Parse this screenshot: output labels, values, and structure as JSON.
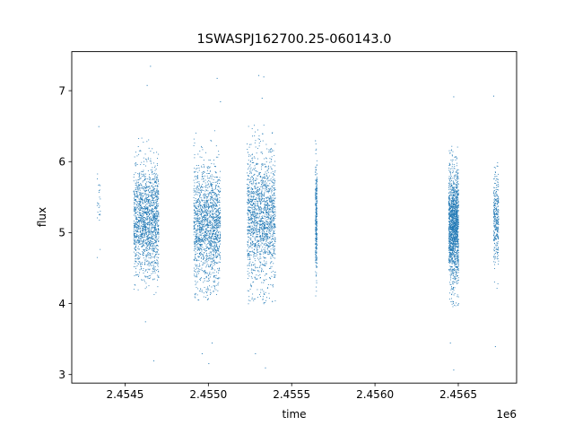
{
  "chart_data": {
    "type": "scatter",
    "title": "1SWASPJ162700.25-060143.0",
    "xlabel": "time",
    "ylabel": "flux",
    "x_offset_label": "1e6",
    "xlim": [
      2.45418,
      2.45685
    ],
    "ylim": [
      2.88,
      7.55
    ],
    "x_ticks": [
      {
        "value": 2.4545,
        "label": "2.4545"
      },
      {
        "value": 2.455,
        "label": "2.4550"
      },
      {
        "value": 2.4555,
        "label": "2.4555"
      },
      {
        "value": 2.456,
        "label": "2.4560"
      },
      {
        "value": 2.4565,
        "label": "2.4565"
      }
    ],
    "y_ticks": [
      {
        "value": 3,
        "label": "3"
      },
      {
        "value": 4,
        "label": "4"
      },
      {
        "value": 5,
        "label": "5"
      },
      {
        "value": 6,
        "label": "6"
      },
      {
        "value": 7,
        "label": "7"
      }
    ],
    "grid": false,
    "point_color": "#1f77b4",
    "clusters": [
      {
        "x_start": 2.45433,
        "x_end": 2.45435,
        "y_mean": 5.5,
        "y_min": 4.75,
        "y_max": 6.5,
        "density": "sparse"
      },
      {
        "x_start": 2.45455,
        "x_end": 2.4547,
        "y_mean": 5.2,
        "y_min": 4.25,
        "y_max": 6.2,
        "density": "dense"
      },
      {
        "x_start": 2.45491,
        "x_end": 2.45507,
        "y_mean": 5.1,
        "y_min": 4.2,
        "y_max": 6.3,
        "density": "dense"
      },
      {
        "x_start": 2.45523,
        "x_end": 2.4554,
        "y_mean": 5.2,
        "y_min": 4.1,
        "y_max": 6.4,
        "density": "dense"
      },
      {
        "x_start": 2.45564,
        "x_end": 2.45565,
        "y_mean": 5.2,
        "y_min": 4.25,
        "y_max": 6.2,
        "density": "medium"
      },
      {
        "x_start": 2.45644,
        "x_end": 2.4565,
        "y_mean": 5.1,
        "y_min": 4.1,
        "y_max": 6.1,
        "density": "dense"
      },
      {
        "x_start": 2.45671,
        "x_end": 2.45674,
        "y_mean": 5.2,
        "y_min": 4.3,
        "y_max": 5.9,
        "density": "medium"
      }
    ],
    "outliers": [
      {
        "x": 2.45465,
        "y": 7.35
      },
      {
        "x": 2.45463,
        "y": 7.08
      },
      {
        "x": 2.45462,
        "y": 3.75
      },
      {
        "x": 2.45467,
        "y": 3.2
      },
      {
        "x": 2.45496,
        "y": 3.3
      },
      {
        "x": 2.455,
        "y": 3.16
      },
      {
        "x": 2.45502,
        "y": 3.45
      },
      {
        "x": 2.45505,
        "y": 7.18
      },
      {
        "x": 2.45507,
        "y": 6.85
      },
      {
        "x": 2.4553,
        "y": 7.22
      },
      {
        "x": 2.45533,
        "y": 7.2
      },
      {
        "x": 2.45532,
        "y": 6.9
      },
      {
        "x": 2.45534,
        "y": 3.1
      },
      {
        "x": 2.45528,
        "y": 3.3
      },
      {
        "x": 2.45564,
        "y": 6.3
      },
      {
        "x": 2.45647,
        "y": 6.92
      },
      {
        "x": 2.45647,
        "y": 3.07
      },
      {
        "x": 2.45645,
        "y": 3.45
      },
      {
        "x": 2.45671,
        "y": 6.93
      },
      {
        "x": 2.45672,
        "y": 3.4
      },
      {
        "x": 2.45434,
        "y": 6.5
      }
    ]
  }
}
